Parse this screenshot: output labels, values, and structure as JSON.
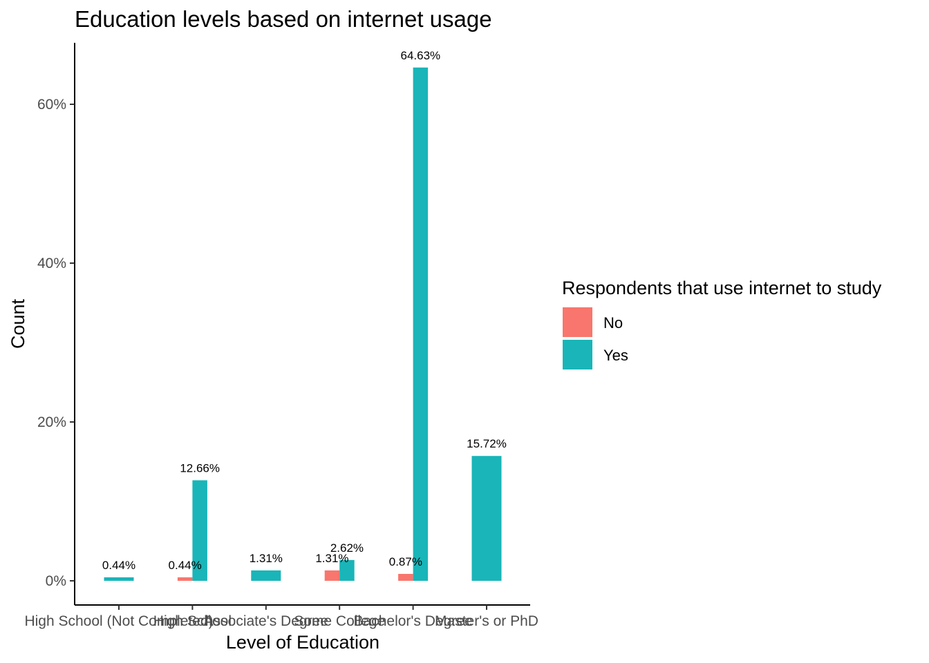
{
  "chart_data": {
    "type": "bar",
    "title": "Education levels based on internet usage",
    "xlabel": "Level of Education",
    "ylabel": "Count",
    "ylim": [
      0,
      0.66
    ],
    "yticks": [
      0,
      0.2,
      0.4,
      0.6
    ],
    "yticks_labels": [
      "0%",
      "20%",
      "40%",
      "60%"
    ],
    "categories": [
      "High School (Not Completed)",
      "High School",
      "Associate's Degree",
      "Some College",
      "Bachelor's Degree",
      "Master's or PhD"
    ],
    "series": [
      {
        "name": "No",
        "color": "#F8766D",
        "values": [
          null,
          0.0044,
          null,
          0.0131,
          0.0087,
          null
        ],
        "labels": [
          "",
          "0.44%",
          "",
          "1.31%",
          "0.87%",
          ""
        ]
      },
      {
        "name": "Yes",
        "color": "#19B5B8",
        "values": [
          0.0044,
          0.1266,
          0.0131,
          0.0262,
          0.6463,
          0.1572
        ],
        "labels": [
          "0.44%",
          "12.66%",
          "1.31%",
          "2.62%",
          "64.63%",
          "15.72%"
        ]
      }
    ],
    "legend": {
      "title": "Respondents that use internet to study",
      "position": "right"
    },
    "grid": false
  }
}
